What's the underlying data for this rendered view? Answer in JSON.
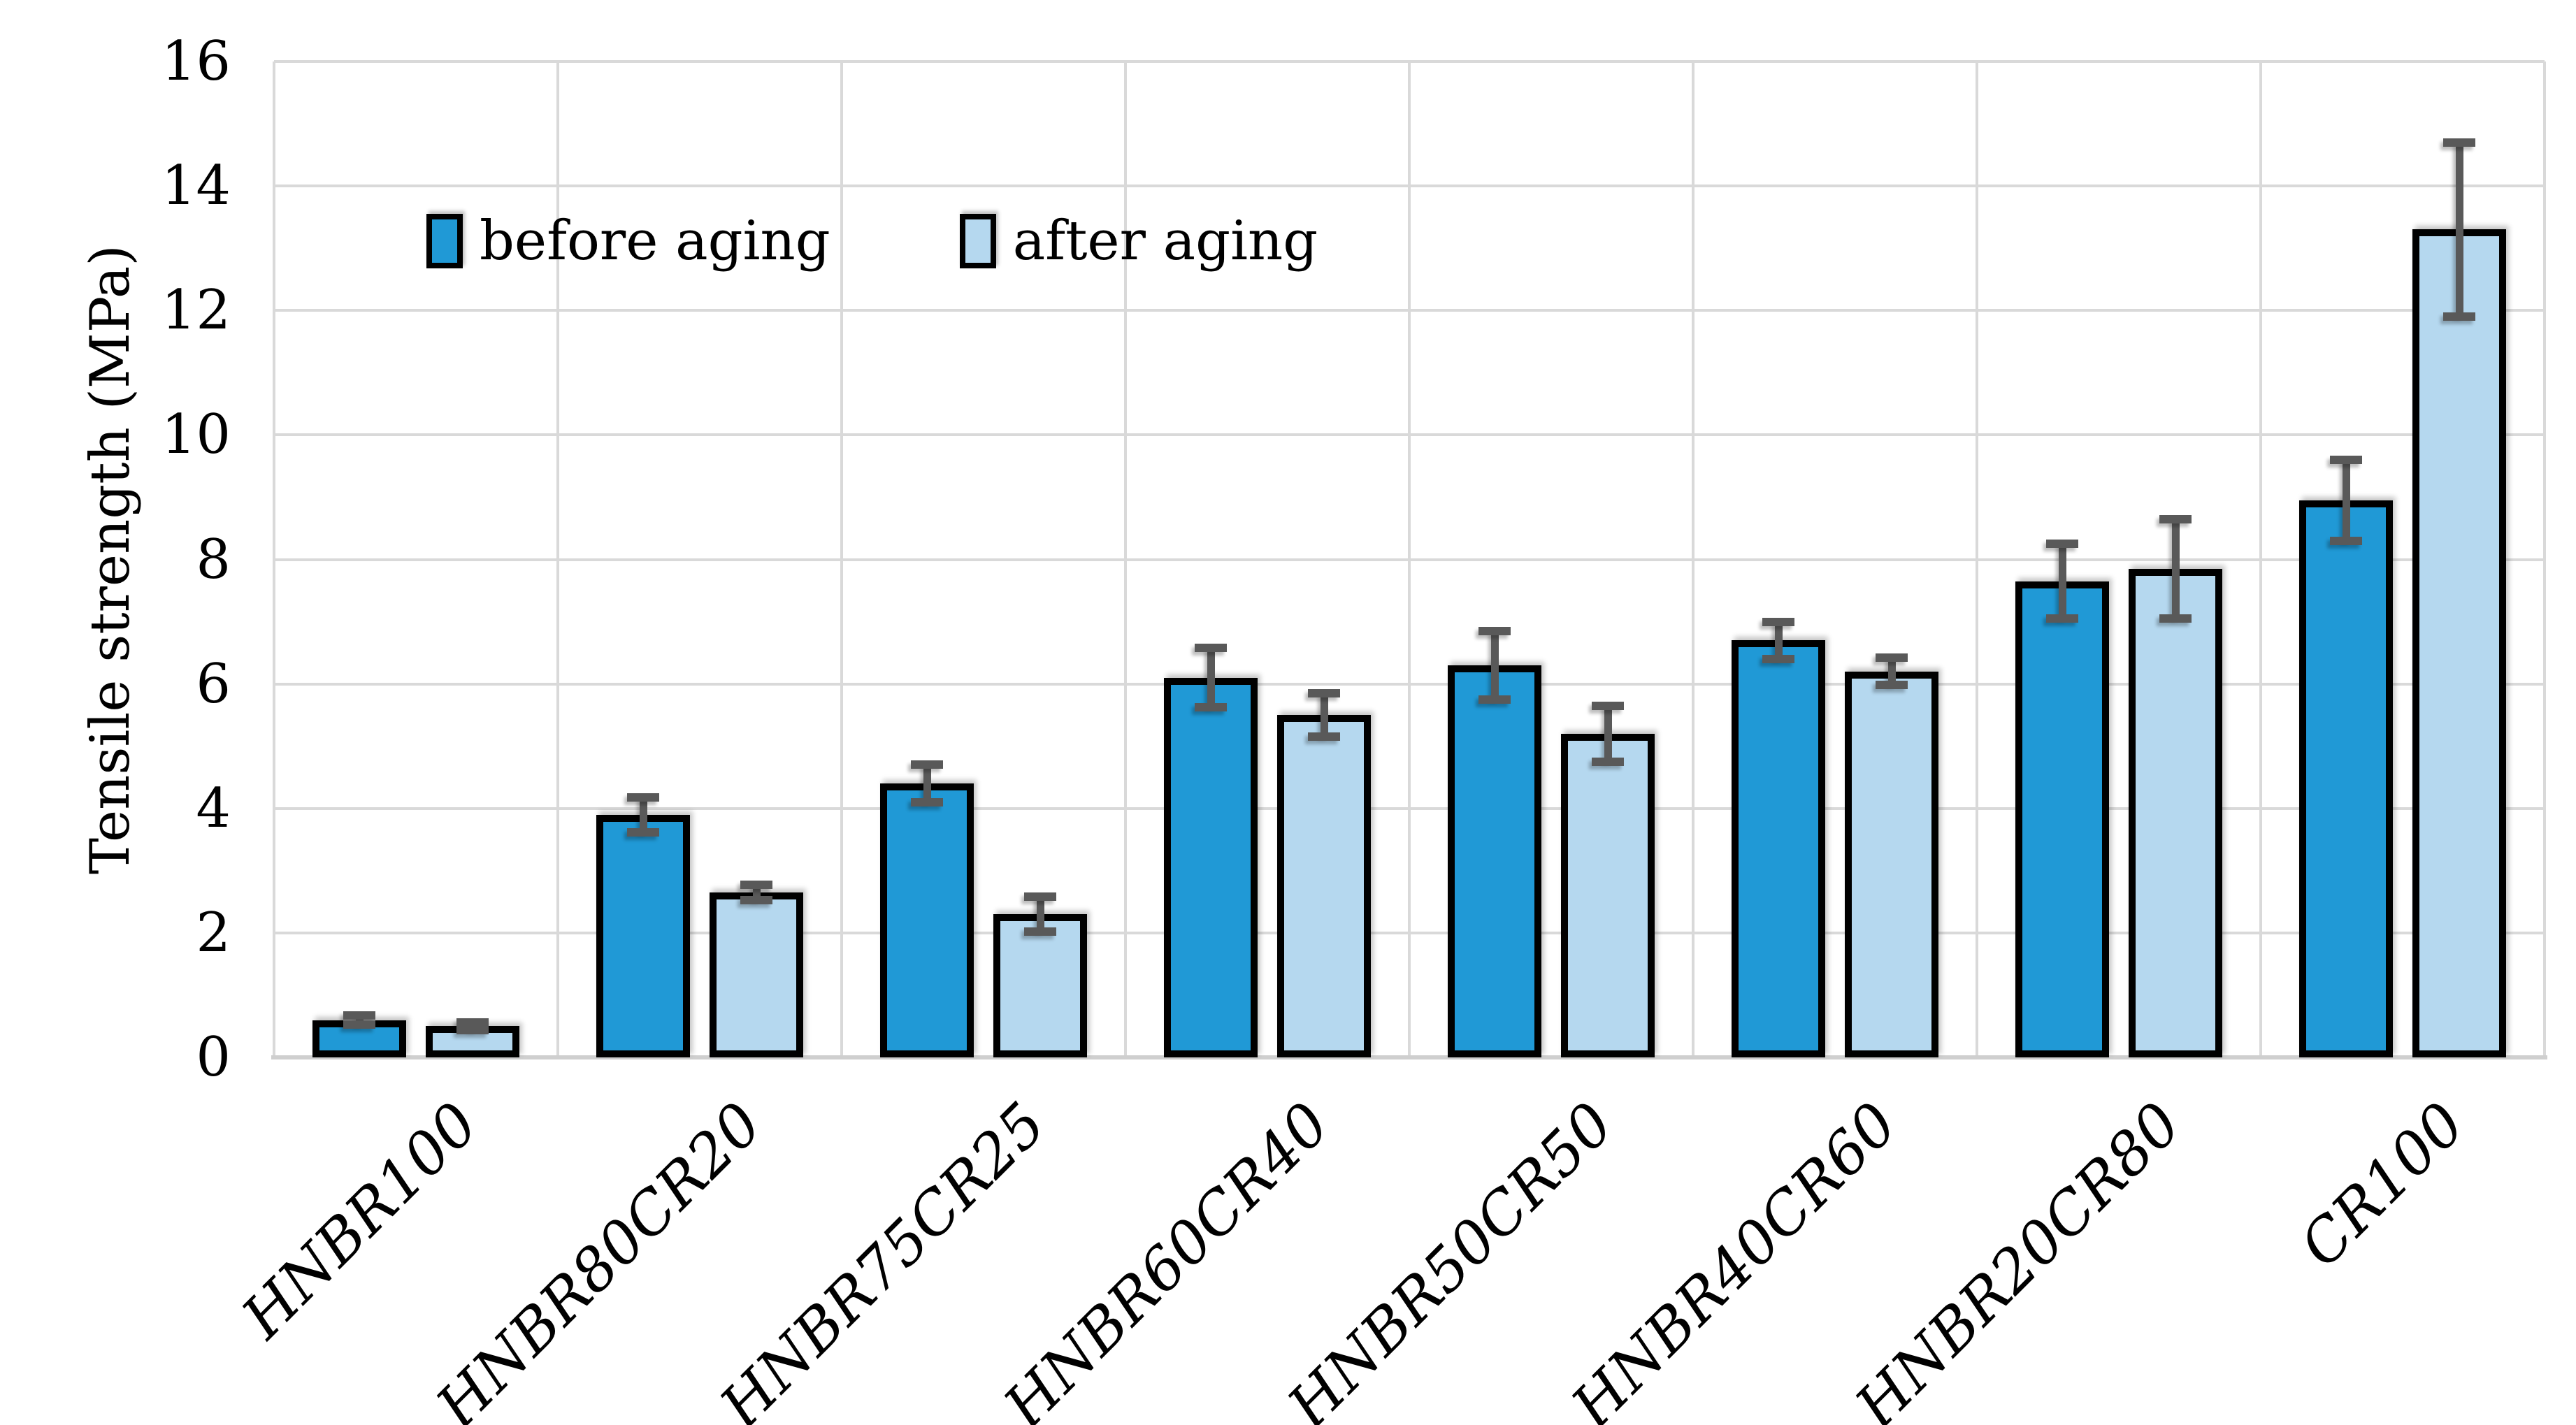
{
  "chart_data": {
    "type": "bar",
    "title": "",
    "categories": [
      "HNBR100",
      "HNBR80CR20",
      "HNBR75CR25",
      "HNBR60CR40",
      "HNBR50CR50",
      "HNBR40CR60",
      "HNBR20CR80",
      "CR100"
    ],
    "series": [
      {
        "name": "before aging",
        "color": "#2099D6",
        "values": [
          0.6,
          3.9,
          4.4,
          6.1,
          6.3,
          6.7,
          7.65,
          8.95
        ],
        "errors": [
          0.07,
          0.28,
          0.3,
          0.48,
          0.55,
          0.3,
          0.6,
          0.65
        ]
      },
      {
        "name": "after aging",
        "color": "#B5D8EF",
        "values": [
          0.5,
          2.65,
          2.3,
          5.5,
          5.2,
          6.2,
          7.85,
          13.3
        ],
        "errors": [
          0.06,
          0.12,
          0.28,
          0.35,
          0.45,
          0.22,
          0.8,
          1.4
        ]
      }
    ],
    "xlabel": "",
    "ylabel": "Tensile strength (MPa)",
    "ylim": [
      0,
      16
    ],
    "yticks": [
      0,
      2,
      4,
      6,
      8,
      10,
      12,
      14,
      16
    ],
    "grid": true,
    "legend_position": "inside-top-left",
    "colors": {
      "bar_border": "#000000",
      "error_bar": "#595959",
      "gridline": "#D9D9D9",
      "axis_line": "#CFCFCF",
      "text": "#000000",
      "background": "#FFFFFF"
    }
  }
}
